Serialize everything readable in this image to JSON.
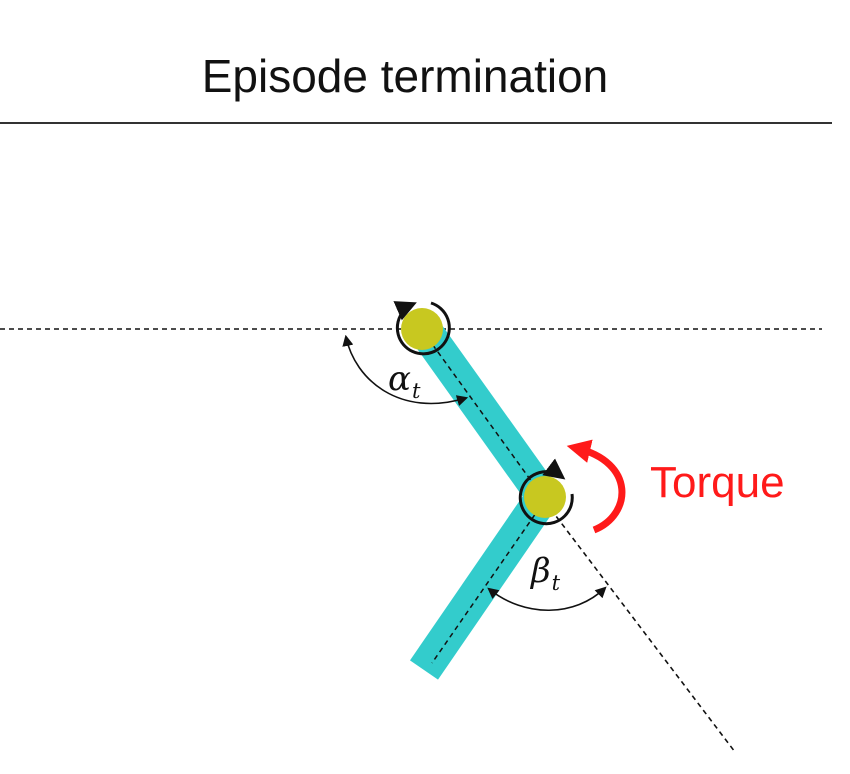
{
  "title": "Episode termination",
  "labels": {
    "torque": "Torque",
    "alpha_symbol": "α",
    "alpha_sub": "t",
    "beta_symbol": "β",
    "beta_sub": "t"
  },
  "colors": {
    "link": "#33cccc",
    "joint": "#c8c820",
    "torque": "#ff1a1a",
    "line": "#111111"
  }
}
